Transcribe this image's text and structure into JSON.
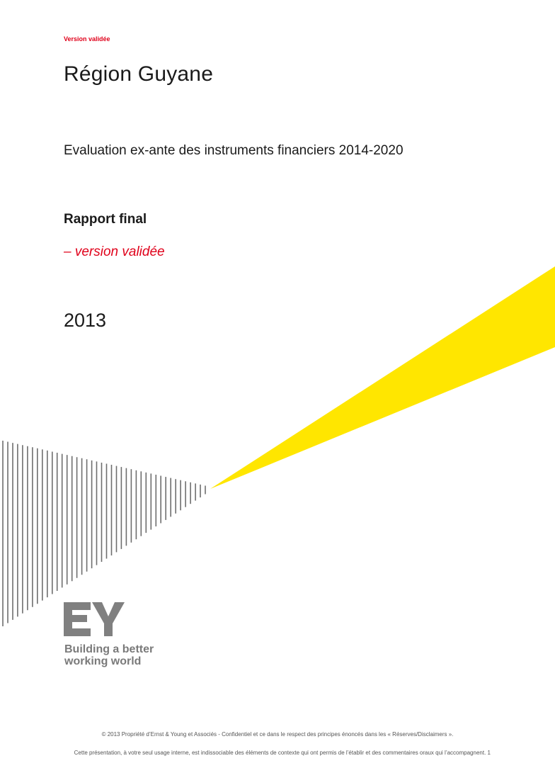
{
  "header": {
    "status_tag": "Version validée"
  },
  "cover": {
    "client": "Région Guyane",
    "subtitle": "Evaluation ex-ante des instruments financiers 2014-2020",
    "report_type": "Rapport final",
    "version": "– version validée",
    "year": "2013"
  },
  "brand": {
    "logo_text": "EY",
    "tagline_line1": "Building a better",
    "tagline_line2": "working world",
    "accent_color": "#FFE600",
    "logo_color": "#808080",
    "stripe_color": "#6e6e6e"
  },
  "footer": {
    "line1": "© 2013 Propriété d’Ernst & Young et Associés - Confidentiel et ce dans le respect des principes énoncés dans les « Réserves/Disclaimers ».",
    "line2": "Cette présentation, à votre seul usage interne, est indissociable des éléments de contexte qui ont permis de l’établir et des commentaires oraux qui l’accompagnent.",
    "page_number": "1"
  }
}
